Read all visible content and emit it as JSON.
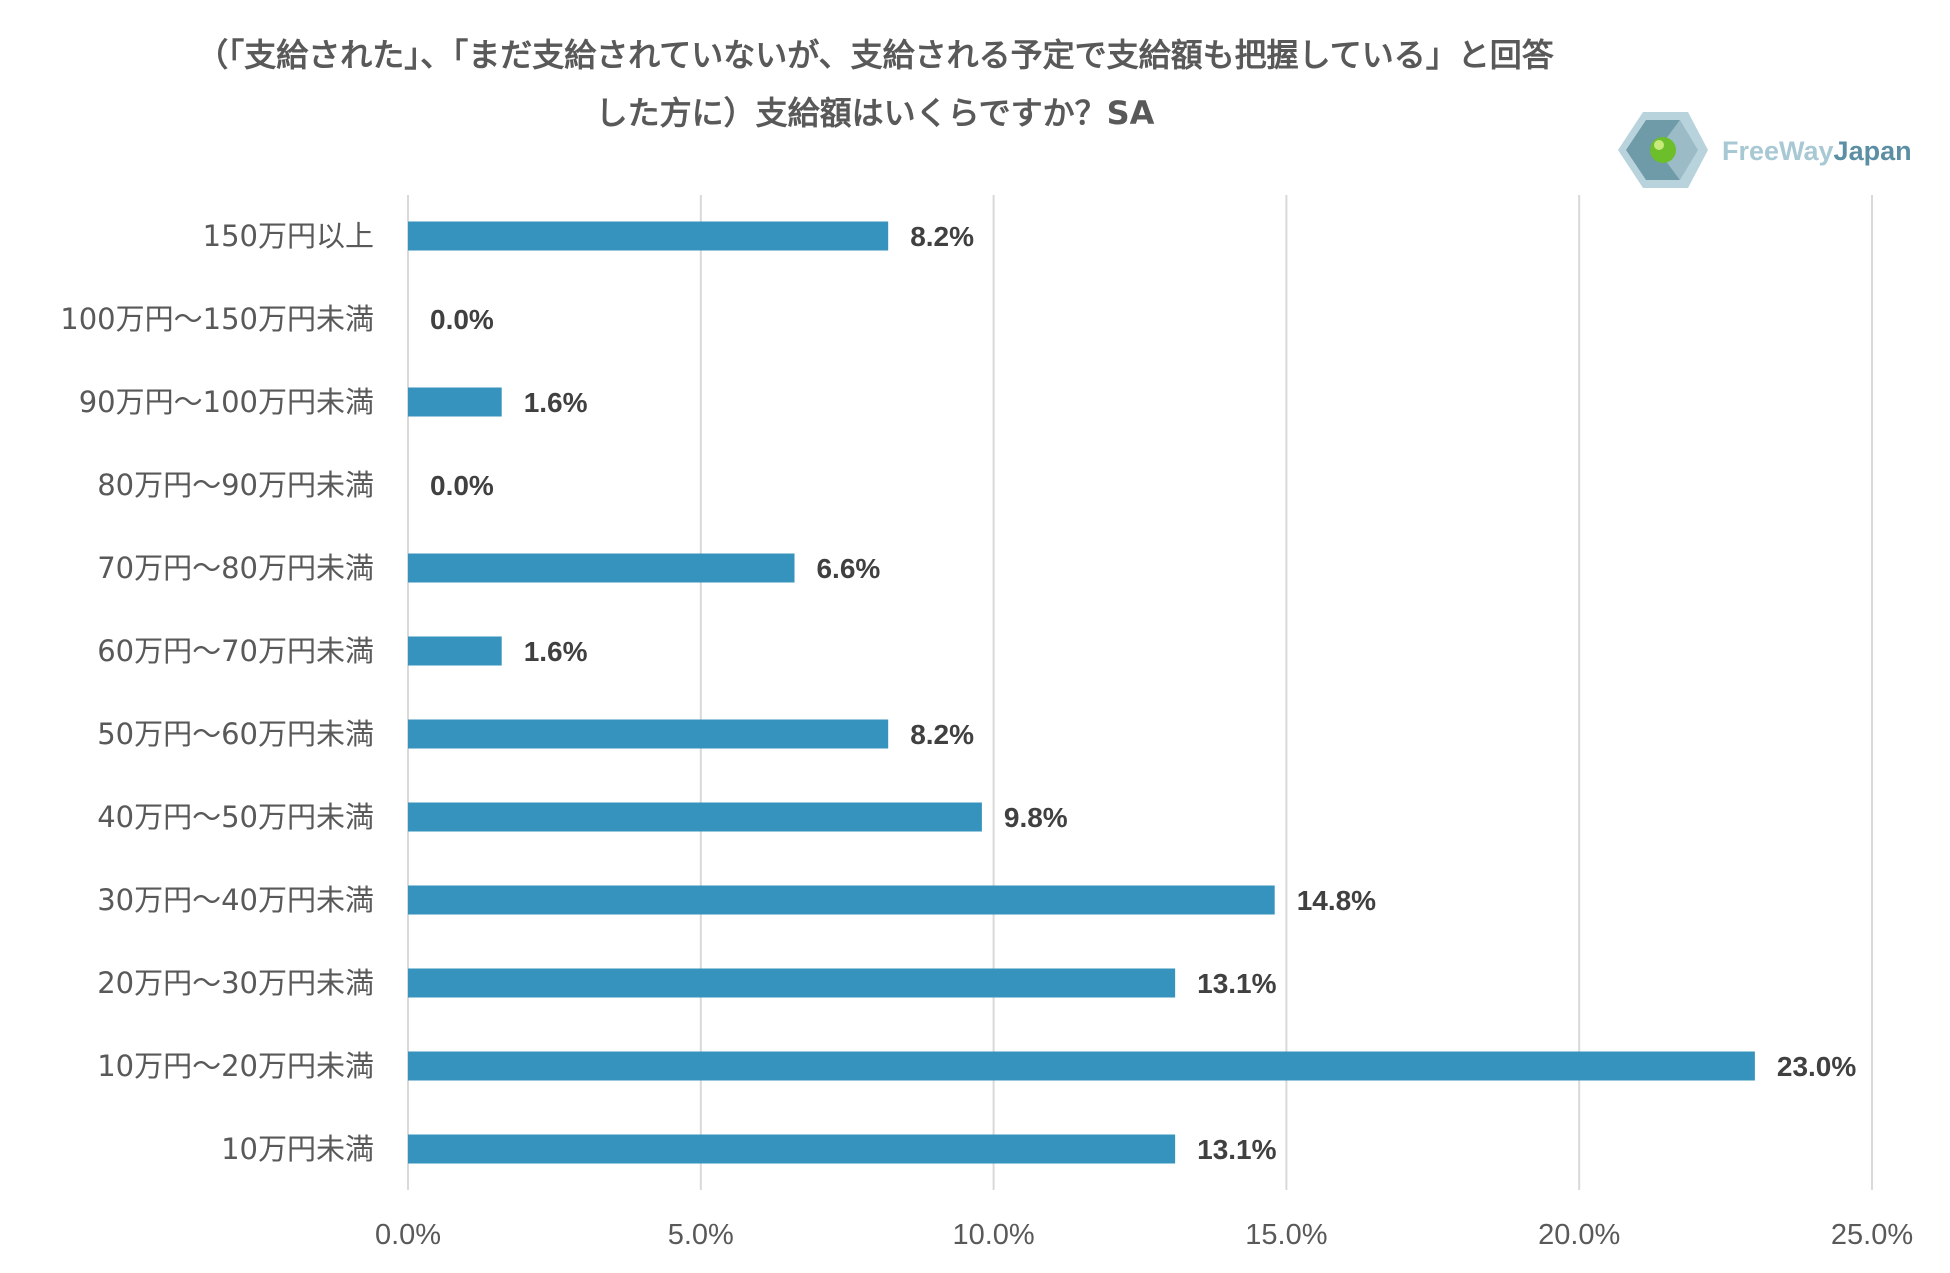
{
  "title_lines": [
    "（「支給された」、「まだ支給されていないが、支給される予定で支給額も把握している」と回答",
    "した方に）支給額はいくらですか？SA"
  ],
  "logo": {
    "text_main": "FreeWay",
    "text_accent": "Japan"
  },
  "colors": {
    "bar": "#3593bd",
    "grid": "#d9d9d9",
    "label": "#595959",
    "data_label": "#404040"
  },
  "chart_data": {
    "type": "bar",
    "orientation": "horizontal",
    "title": "（「支給された」、「まだ支給されていないが、支給される予定で支給額も把握している」と回答した方に）支給額はいくらですか？SA",
    "categories": [
      "150万円以上",
      "100万円〜150万円未満",
      "90万円〜100万円未満",
      "80万円〜90万円未満",
      "70万円〜80万円未満",
      "60万円〜70万円未満",
      "50万円〜60万円未満",
      "40万円〜50万円未満",
      "30万円〜40万円未満",
      "20万円〜30万円未満",
      "10万円〜20万円未満",
      "10万円未満"
    ],
    "values": [
      8.2,
      0.0,
      1.6,
      0.0,
      6.6,
      1.6,
      8.2,
      9.8,
      14.8,
      13.1,
      23.0,
      13.1
    ],
    "value_labels": [
      "8.2%",
      "0.0%",
      "1.6%",
      "0.0%",
      "6.6%",
      "1.6%",
      "8.2%",
      "9.8%",
      "14.8%",
      "13.1%",
      "23.0%",
      "13.1%"
    ],
    "xlim": [
      0,
      25
    ],
    "xticks": [
      0,
      5,
      10,
      15,
      20,
      25
    ],
    "xtick_labels": [
      "0.0%",
      "5.0%",
      "10.0%",
      "15.0%",
      "20.0%",
      "25.0%"
    ],
    "grid": "vertical",
    "xlabel": "",
    "ylabel": ""
  }
}
